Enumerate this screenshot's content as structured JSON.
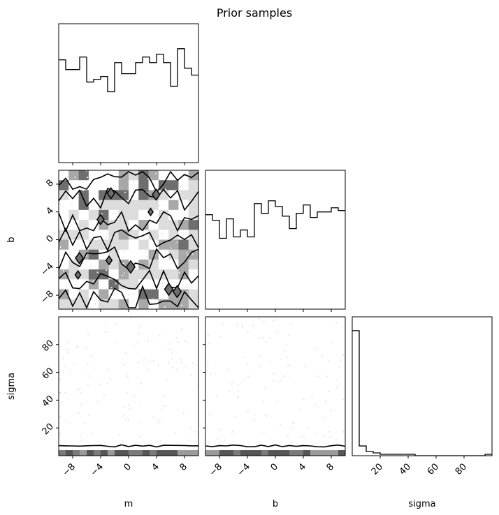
{
  "chart_data": {
    "type": "corner",
    "title": "Prior samples",
    "parameters": [
      "m",
      "b",
      "sigma"
    ],
    "ranges": {
      "m": [
        -10,
        10
      ],
      "b": [
        -10,
        10
      ],
      "sigma": [
        0,
        100
      ]
    },
    "ticks": {
      "m": [
        -8,
        -4,
        0,
        4,
        8
      ],
      "b": [
        -8,
        -4,
        0,
        4,
        8
      ],
      "sigma": [
        20,
        40,
        60,
        80
      ]
    },
    "tick_labels": {
      "m": [
        "−8",
        "−4",
        "0",
        "4",
        "8"
      ],
      "b": [
        "−8",
        "−4",
        "0",
        "4",
        "8"
      ],
      "sigma": [
        "20",
        "40",
        "60",
        "80"
      ]
    },
    "histograms": {
      "m": {
        "bin_edges": [
          -10,
          -9,
          -8,
          -7,
          -6,
          -5,
          -4,
          -3,
          -2,
          -1,
          0,
          1,
          2,
          3,
          4,
          5,
          6,
          7,
          8,
          9,
          10
        ],
        "relative_heights": [
          0.74,
          0.67,
          0.67,
          0.76,
          0.58,
          0.6,
          0.62,
          0.51,
          0.72,
          0.64,
          0.64,
          0.72,
          0.76,
          0.72,
          0.78,
          0.72,
          0.55,
          0.82,
          0.68,
          0.63
        ]
      },
      "b": {
        "bin_edges": [
          -10,
          -9,
          -8,
          -7,
          -6,
          -5,
          -4,
          -3,
          -2,
          -1,
          0,
          1,
          2,
          3,
          4,
          5,
          6,
          7,
          8,
          9,
          10
        ],
        "relative_heights": [
          0.68,
          0.64,
          0.51,
          0.65,
          0.52,
          0.57,
          0.52,
          0.76,
          0.69,
          0.78,
          0.74,
          0.67,
          0.58,
          0.69,
          0.75,
          0.66,
          0.7,
          0.7,
          0.73,
          0.71
        ]
      },
      "sigma": {
        "bin_edges": [
          0,
          5,
          10,
          15,
          20,
          25,
          30,
          35,
          40,
          45,
          50,
          55,
          60,
          65,
          70,
          75,
          80,
          85,
          90,
          95,
          100
        ],
        "relative_heights": [
          0.9,
          0.07,
          0.03,
          0.02,
          0.01,
          0.01,
          0.01,
          0.01,
          0.01,
          0.0,
          0.0,
          0.0,
          0.0,
          0.0,
          0.0,
          0.0,
          0.0,
          0.0,
          0.0,
          0.01
        ]
      }
    },
    "density_panels": [
      {
        "x": "m",
        "y": "b",
        "grid": 14,
        "seed": 7
      },
      {
        "x": "m",
        "y": "sigma",
        "dense_below": 4
      },
      {
        "x": "b",
        "y": "sigma",
        "dense_below": 4
      }
    ],
    "colors": {
      "line": "#000000",
      "shade_dark": "#6e6e6e",
      "shade_mid": "#a8a8a8",
      "shade_light": "#dcdcdc",
      "point": "#e6e6e6"
    }
  }
}
